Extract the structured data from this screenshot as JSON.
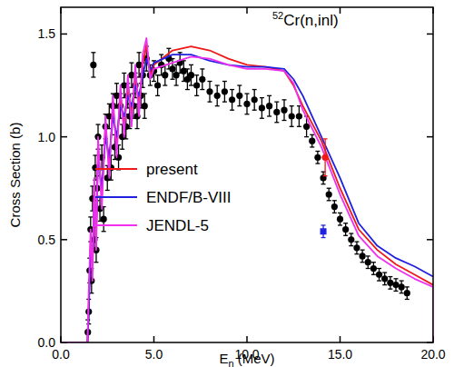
{
  "chart_data": {
    "type": "line",
    "x_label": "En (MeV)",
    "y_label": "Cross Section (b)",
    "annotations": [
      "52Cr(n,inl)"
    ],
    "xlim": [
      0,
      20
    ],
    "ylim": [
      0,
      1.63
    ],
    "xticks": [
      {
        "value": 0,
        "label": "0.0"
      },
      {
        "value": 5,
        "label": "5.0"
      },
      {
        "value": 10,
        "label": "10.0"
      },
      {
        "value": 15,
        "label": "15.0"
      },
      {
        "value": 20,
        "label": "20.0"
      }
    ],
    "yticks": [
      {
        "value": 0,
        "label": "0.0"
      },
      {
        "value": 0.5,
        "label": "0.5"
      },
      {
        "value": 1,
        "label": "1.0"
      },
      {
        "value": 1.5,
        "label": "1.5"
      }
    ],
    "grid": false,
    "legend": "center",
    "series": [
      {
        "type": "scatter",
        "marker": "circle",
        "color": "#000000",
        "x": [
          1.45,
          1.5,
          1.55,
          1.6,
          1.65,
          1.7,
          1.75,
          1.8,
          1.85,
          1.9,
          1.95,
          2.0,
          2.1,
          2.2,
          2.3,
          2.4,
          2.5,
          2.6,
          2.7,
          2.8,
          2.9,
          3.0,
          3.1,
          3.2,
          3.3,
          3.4,
          3.5,
          3.6,
          3.7,
          3.8,
          3.9,
          4.0,
          4.1,
          4.2,
          4.3,
          4.4,
          4.5,
          4.6,
          4.8,
          5.0,
          5.2,
          5.4,
          5.6,
          5.8,
          6.0,
          6.2,
          6.4,
          6.6,
          6.8,
          7.0,
          7.3,
          7.6,
          8.0,
          8.4,
          8.8,
          9.2,
          9.6,
          10.0,
          10.4,
          10.8,
          11.2,
          11.6,
          12.0,
          12.4,
          12.8,
          13.2,
          13.5,
          13.8,
          14.1,
          14.4,
          14.7,
          15.0,
          15.3,
          15.6,
          15.9,
          16.2,
          16.5,
          16.8,
          17.1,
          17.4,
          17.7,
          18.0,
          18.3,
          18.6
        ],
        "values": [
          0.05,
          0.15,
          0.35,
          0.55,
          0.3,
          0.7,
          1.35,
          0.5,
          0.85,
          0.45,
          0.75,
          1.0,
          0.65,
          0.9,
          0.6,
          1.05,
          0.8,
          1.1,
          0.85,
          1.15,
          0.95,
          1.2,
          0.9,
          1.15,
          1.0,
          1.25,
          1.05,
          1.2,
          1.1,
          1.3,
          1.15,
          1.25,
          1.1,
          1.35,
          1.2,
          1.3,
          1.15,
          1.38,
          1.3,
          1.32,
          1.25,
          1.35,
          1.3,
          1.38,
          1.33,
          1.3,
          1.36,
          1.32,
          1.28,
          1.3,
          1.25,
          1.28,
          1.22,
          1.2,
          1.22,
          1.18,
          1.2,
          1.16,
          1.18,
          1.14,
          1.15,
          1.12,
          1.13,
          1.1,
          1.1,
          1.05,
          0.98,
          0.9,
          0.8,
          0.72,
          0.66,
          0.6,
          0.55,
          0.5,
          0.46,
          0.42,
          0.39,
          0.36,
          0.33,
          0.31,
          0.29,
          0.28,
          0.27,
          0.24
        ],
        "errors": [
          0.06,
          0.06,
          0.06,
          0.06,
          0.06,
          0.06,
          0.06,
          0.06,
          0.06,
          0.06,
          0.06,
          0.06,
          0.06,
          0.06,
          0.06,
          0.06,
          0.06,
          0.06,
          0.06,
          0.06,
          0.06,
          0.06,
          0.06,
          0.06,
          0.06,
          0.06,
          0.06,
          0.06,
          0.06,
          0.06,
          0.06,
          0.06,
          0.06,
          0.06,
          0.06,
          0.06,
          0.06,
          0.06,
          0.05,
          0.05,
          0.05,
          0.05,
          0.05,
          0.05,
          0.05,
          0.05,
          0.05,
          0.05,
          0.05,
          0.05,
          0.05,
          0.05,
          0.05,
          0.05,
          0.05,
          0.05,
          0.05,
          0.05,
          0.05,
          0.05,
          0.05,
          0.05,
          0.05,
          0.05,
          0.05,
          0.05,
          0.03,
          0.03,
          0.03,
          0.03,
          0.03,
          0.03,
          0.03,
          0.03,
          0.03,
          0.03,
          0.03,
          0.03,
          0.03,
          0.03,
          0.03,
          0.03,
          0.03,
          0.03
        ]
      },
      {
        "name": "present",
        "type": "line",
        "line_style": "solid",
        "color": "#f01818",
        "x": [
          0,
          1.43,
          1.5,
          1.6,
          1.7,
          1.8,
          1.9,
          2.0,
          2.2,
          2.4,
          2.6,
          2.8,
          3.0,
          3.2,
          3.4,
          3.6,
          3.8,
          4.0,
          4.2,
          4.4,
          4.6,
          4.8,
          5,
          6,
          7,
          8,
          9,
          10,
          11,
          12,
          12.5,
          13,
          14,
          15,
          16,
          17,
          18,
          19,
          20
        ],
        "values": [
          0,
          0,
          0.2,
          0.5,
          0.35,
          0.75,
          0.5,
          0.95,
          0.7,
          1.05,
          0.85,
          1.15,
          0.95,
          1.2,
          1.05,
          1.25,
          1.1,
          1.3,
          1.15,
          1.35,
          1.45,
          1.3,
          1.35,
          1.42,
          1.44,
          1.42,
          1.38,
          1.35,
          1.34,
          1.32,
          1.25,
          1.15,
          0.98,
          0.75,
          0.55,
          0.45,
          0.38,
          0.33,
          0.28
        ]
      },
      {
        "name": "ENDF/B-VIII",
        "type": "line",
        "line_style": "solid",
        "color": "#2020e0",
        "x": [
          0,
          1.43,
          1.5,
          1.6,
          1.7,
          1.8,
          1.9,
          2.0,
          2.2,
          2.4,
          2.6,
          2.8,
          3.0,
          3.2,
          3.4,
          3.6,
          3.8,
          4.0,
          4.2,
          4.4,
          4.6,
          4.8,
          5,
          6,
          7,
          8,
          9,
          10,
          11,
          12,
          12.5,
          13,
          14,
          15,
          16,
          17,
          18,
          19,
          20
        ],
        "values": [
          0,
          0,
          0.15,
          0.45,
          0.4,
          0.7,
          0.55,
          0.9,
          0.75,
          1.0,
          0.9,
          1.1,
          1.0,
          1.15,
          1.1,
          1.2,
          1.15,
          1.25,
          1.2,
          1.3,
          1.38,
          1.32,
          1.36,
          1.4,
          1.4,
          1.37,
          1.35,
          1.34,
          1.34,
          1.33,
          1.28,
          1.2,
          1.0,
          0.8,
          0.58,
          0.47,
          0.41,
          0.37,
          0.32
        ]
      },
      {
        "name": "JENDL-5",
        "type": "line",
        "line_style": "solid",
        "color": "#f030f0",
        "x": [
          0,
          1.43,
          1.5,
          1.6,
          1.7,
          1.8,
          1.9,
          2.0,
          2.2,
          2.4,
          2.6,
          2.8,
          3.0,
          3.2,
          3.4,
          3.6,
          3.8,
          4.0,
          4.2,
          4.4,
          4.6,
          4.8,
          5,
          6,
          7,
          8,
          9,
          10,
          11,
          12,
          12.5,
          13,
          14,
          15,
          16,
          17,
          18,
          19,
          20,
          20
        ],
        "values": [
          0,
          0,
          0.25,
          0.55,
          0.3,
          0.8,
          0.45,
          1.0,
          0.65,
          1.1,
          0.8,
          1.2,
          0.9,
          1.25,
          1.0,
          1.3,
          1.05,
          1.35,
          1.1,
          1.4,
          1.48,
          1.28,
          1.33,
          1.36,
          1.39,
          1.38,
          1.35,
          1.33,
          1.33,
          1.32,
          1.26,
          1.13,
          0.95,
          0.72,
          0.52,
          0.42,
          0.36,
          0.31,
          0.27,
          0
        ]
      },
      {
        "type": "scatter",
        "marker": "circle",
        "color": "#f01818",
        "x": [
          14.2
        ],
        "values": [
          0.9
        ],
        "errors": [
          0.09
        ]
      },
      {
        "type": "scatter",
        "marker": "square",
        "color": "#2020e0",
        "x": [
          14.1
        ],
        "values": [
          0.54
        ],
        "errors": [
          0.03
        ]
      }
    ]
  }
}
